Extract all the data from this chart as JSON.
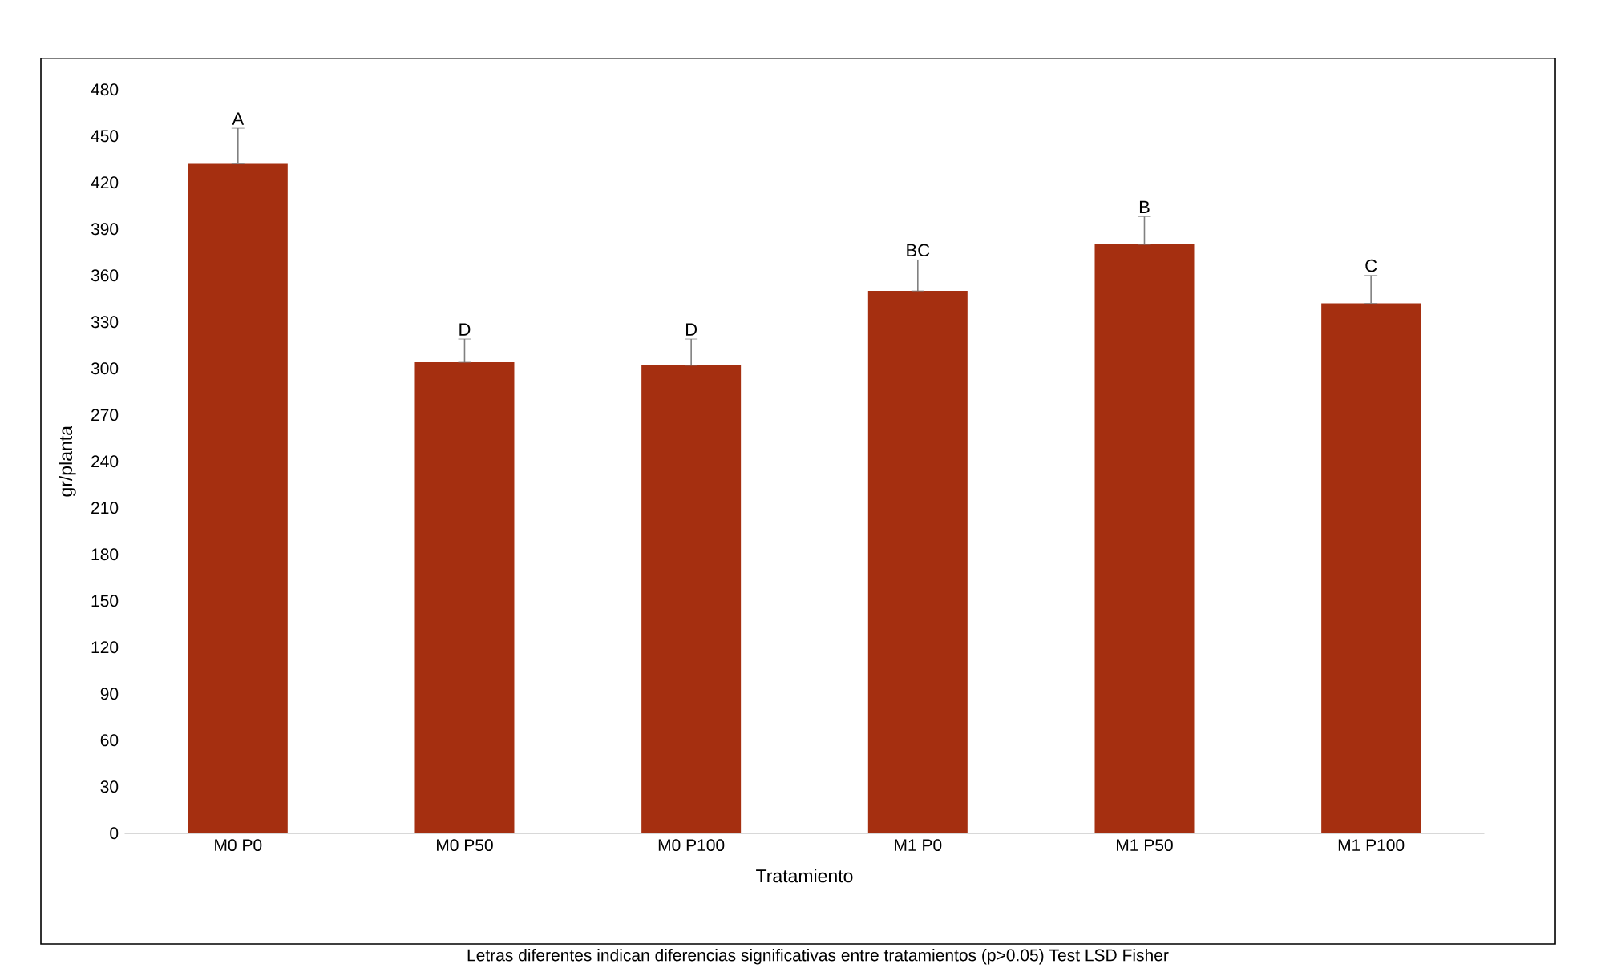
{
  "chart_data": {
    "type": "bar",
    "xlabel": "Tratamiento",
    "ylabel": "gr/planta",
    "categories": [
      "M0 P0",
      "M0 P50",
      "M0 P100",
      "M1 P0",
      "M1 P50",
      "M1 P100"
    ],
    "values": [
      432,
      304,
      302,
      350,
      380,
      342
    ],
    "errors": [
      [
        432,
        455
      ],
      [
        304,
        319
      ],
      [
        302,
        319
      ],
      [
        350,
        370
      ],
      [
        380,
        398
      ],
      [
        342,
        360
      ]
    ],
    "color": "#a52f10",
    "ylim": [
      0,
      480
    ],
    "yticks": [
      0,
      30,
      60,
      90,
      120,
      150,
      180,
      210,
      240,
      270,
      300,
      330,
      360,
      390,
      420,
      450,
      480
    ],
    "grid": false,
    "legend": false,
    "annotations": [
      {
        "text": "A",
        "x": "M0 P0",
        "y": 455
      },
      {
        "text": "D",
        "x": "M0 P50",
        "y": 319
      },
      {
        "text": "D",
        "x": "M0 P100",
        "y": 319
      },
      {
        "text": "BC",
        "x": "M1 P0",
        "y": 370
      },
      {
        "text": "B",
        "x": "M1 P50",
        "y": 398
      },
      {
        "text": "C",
        "x": "M1 P100",
        "y": 360
      },
      "Letras diferentes indican diferencias significativas entre tratamientos (p>0.05) Test LSD Fisher"
    ]
  }
}
